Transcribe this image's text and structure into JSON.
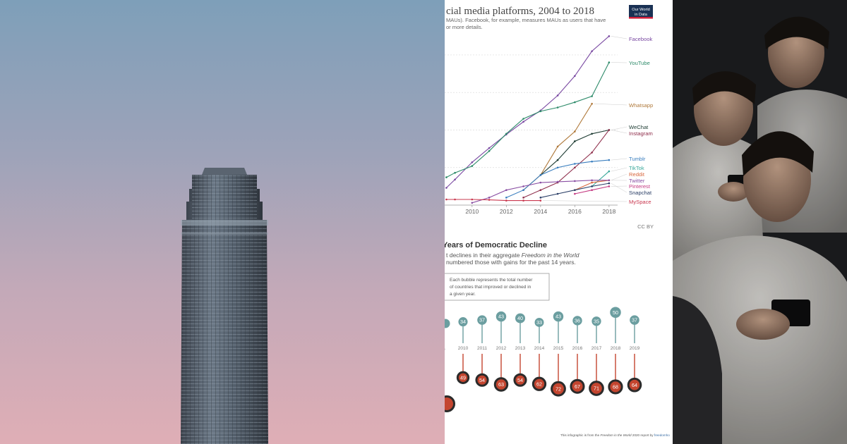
{
  "panels": {
    "left": {
      "description_icon": "skyscraper-photo"
    },
    "right": {
      "description_icon": "people-using-phones-photo"
    }
  },
  "social_chart": {
    "title": "cial media platforms, 2004 to 2018",
    "subtitle_line1": "MAUs). Facebook, for example, measures MAUs as users that have",
    "subtitle_line2": "or more details.",
    "logo_line1": "Our World",
    "logo_line2": "in Data",
    "license": "CC BY",
    "colors": {
      "logo_bg": "#1a3154",
      "logo_accent": "#cf1f3a",
      "grid": "#dddddd"
    }
  },
  "democracy": {
    "title": "Years of Democratic Decline",
    "subtitle_line1_a": "t declines in their aggregate ",
    "subtitle_line1_b": "Freedom in the World",
    "subtitle_line2": "numbered those with gains for the past 14 years.",
    "note_line1": "Each bubble represents the total number",
    "note_line2": "of countries that improved or declined in",
    "note_line3": "a given year.",
    "footer_a": "This infographic is from the ",
    "footer_b": "Freedom in the World",
    "footer_c": " 2020 report by ",
    "footer_d": "freedomho",
    "colors": {
      "gain": "#6b9ea0",
      "decline": "#c4452f",
      "decline_ring": "#2b2b2b"
    }
  },
  "chart_data": [
    {
      "type": "line",
      "title": "cial media platforms, 2004 to 2018",
      "xlabel": "",
      "ylabel": "",
      "xlim": [
        2008.4,
        2018.5
      ],
      "ylim": [
        0,
        2300
      ],
      "x_ticks": [
        "2010",
        "2012",
        "2014",
        "2016",
        "2018"
      ],
      "grid": true,
      "series": [
        {
          "name": "Facebook",
          "color": "#7a4aa2",
          "x": [
            2008.5,
            2009,
            2010,
            2011,
            2012,
            2013,
            2014,
            2015,
            2016,
            2017,
            2018
          ],
          "values": [
            230,
            340,
            570,
            760,
            940,
            1110,
            1260,
            1460,
            1720,
            2050,
            2250
          ]
        },
        {
          "name": "YouTube",
          "color": "#2e8b6a",
          "x": [
            2008.5,
            2009,
            2010,
            2011,
            2012,
            2013,
            2014,
            2015,
            2016,
            2017,
            2018
          ],
          "values": [
            370,
            430,
            520,
            720,
            950,
            1150,
            1250,
            1300,
            1370,
            1450,
            1900
          ]
        },
        {
          "name": "Whatsapp",
          "color": "#b07a3c",
          "x": [
            2013,
            2014,
            2015,
            2016,
            2017
          ],
          "values": [
            200,
            400,
            780,
            980,
            1350
          ]
        },
        {
          "name": "WeChat",
          "color": "#1e3c33",
          "x": [
            2014,
            2015,
            2016,
            2017,
            2018
          ],
          "values": [
            400,
            600,
            850,
            950,
            1000
          ]
        },
        {
          "name": "Instagram",
          "color": "#8f2f4c",
          "x": [
            2013,
            2014,
            2015,
            2016,
            2017,
            2018
          ],
          "values": [
            100,
            200,
            300,
            500,
            700,
            1000
          ]
        },
        {
          "name": "Tumblr",
          "color": "#3b7fbf",
          "x": [
            2012,
            2013,
            2014,
            2015,
            2016,
            2017,
            2018
          ],
          "values": [
            100,
            200,
            400,
            500,
            550,
            580,
            600
          ]
        },
        {
          "name": "TikTok",
          "color": "#3aa89a",
          "x": [
            2017,
            2018
          ],
          "values": [
            250,
            450
          ]
        },
        {
          "name": "Reddit",
          "color": "#d8663c",
          "x": [
            2016,
            2017,
            2018
          ],
          "values": [
            200,
            300,
            330
          ]
        },
        {
          "name": "Twitter",
          "color": "#8a4fa3",
          "x": [
            2010,
            2011,
            2012,
            2013,
            2014,
            2015,
            2016,
            2017,
            2018
          ],
          "values": [
            30,
            100,
            200,
            250,
            300,
            310,
            320,
            330,
            330
          ]
        },
        {
          "name": "Pinterest",
          "color": "#c43a82",
          "x": [
            2016,
            2017,
            2018
          ],
          "values": [
            150,
            200,
            250
          ]
        },
        {
          "name": "Snapchat",
          "color": "#2a3e66",
          "x": [
            2014,
            2015,
            2016,
            2017,
            2018
          ],
          "values": [
            100,
            150,
            200,
            250,
            290
          ]
        },
        {
          "name": "MySpace",
          "color": "#c9384f",
          "x": [
            2008.5,
            2009,
            2010,
            2011,
            2012,
            2013,
            2014
          ],
          "values": [
            75,
            75,
            75,
            70,
            60,
            60,
            60
          ]
        }
      ]
    },
    {
      "type": "bar",
      "title": "Years of Democratic Decline",
      "categories": [
        "2010",
        "2011",
        "2012",
        "2013",
        "2014",
        "2015",
        "2016",
        "2017",
        "2018",
        "2019"
      ],
      "first_year_label_fragment": "9",
      "series": [
        {
          "name": "Countries with net gains",
          "values": [
            34,
            37,
            43,
            40,
            33,
            43,
            36,
            35,
            50,
            37
          ]
        },
        {
          "name": "Countries with net declines",
          "values": [
            49,
            54,
            63,
            54,
            62,
            72,
            67,
            71,
            68,
            64
          ]
        }
      ]
    }
  ]
}
